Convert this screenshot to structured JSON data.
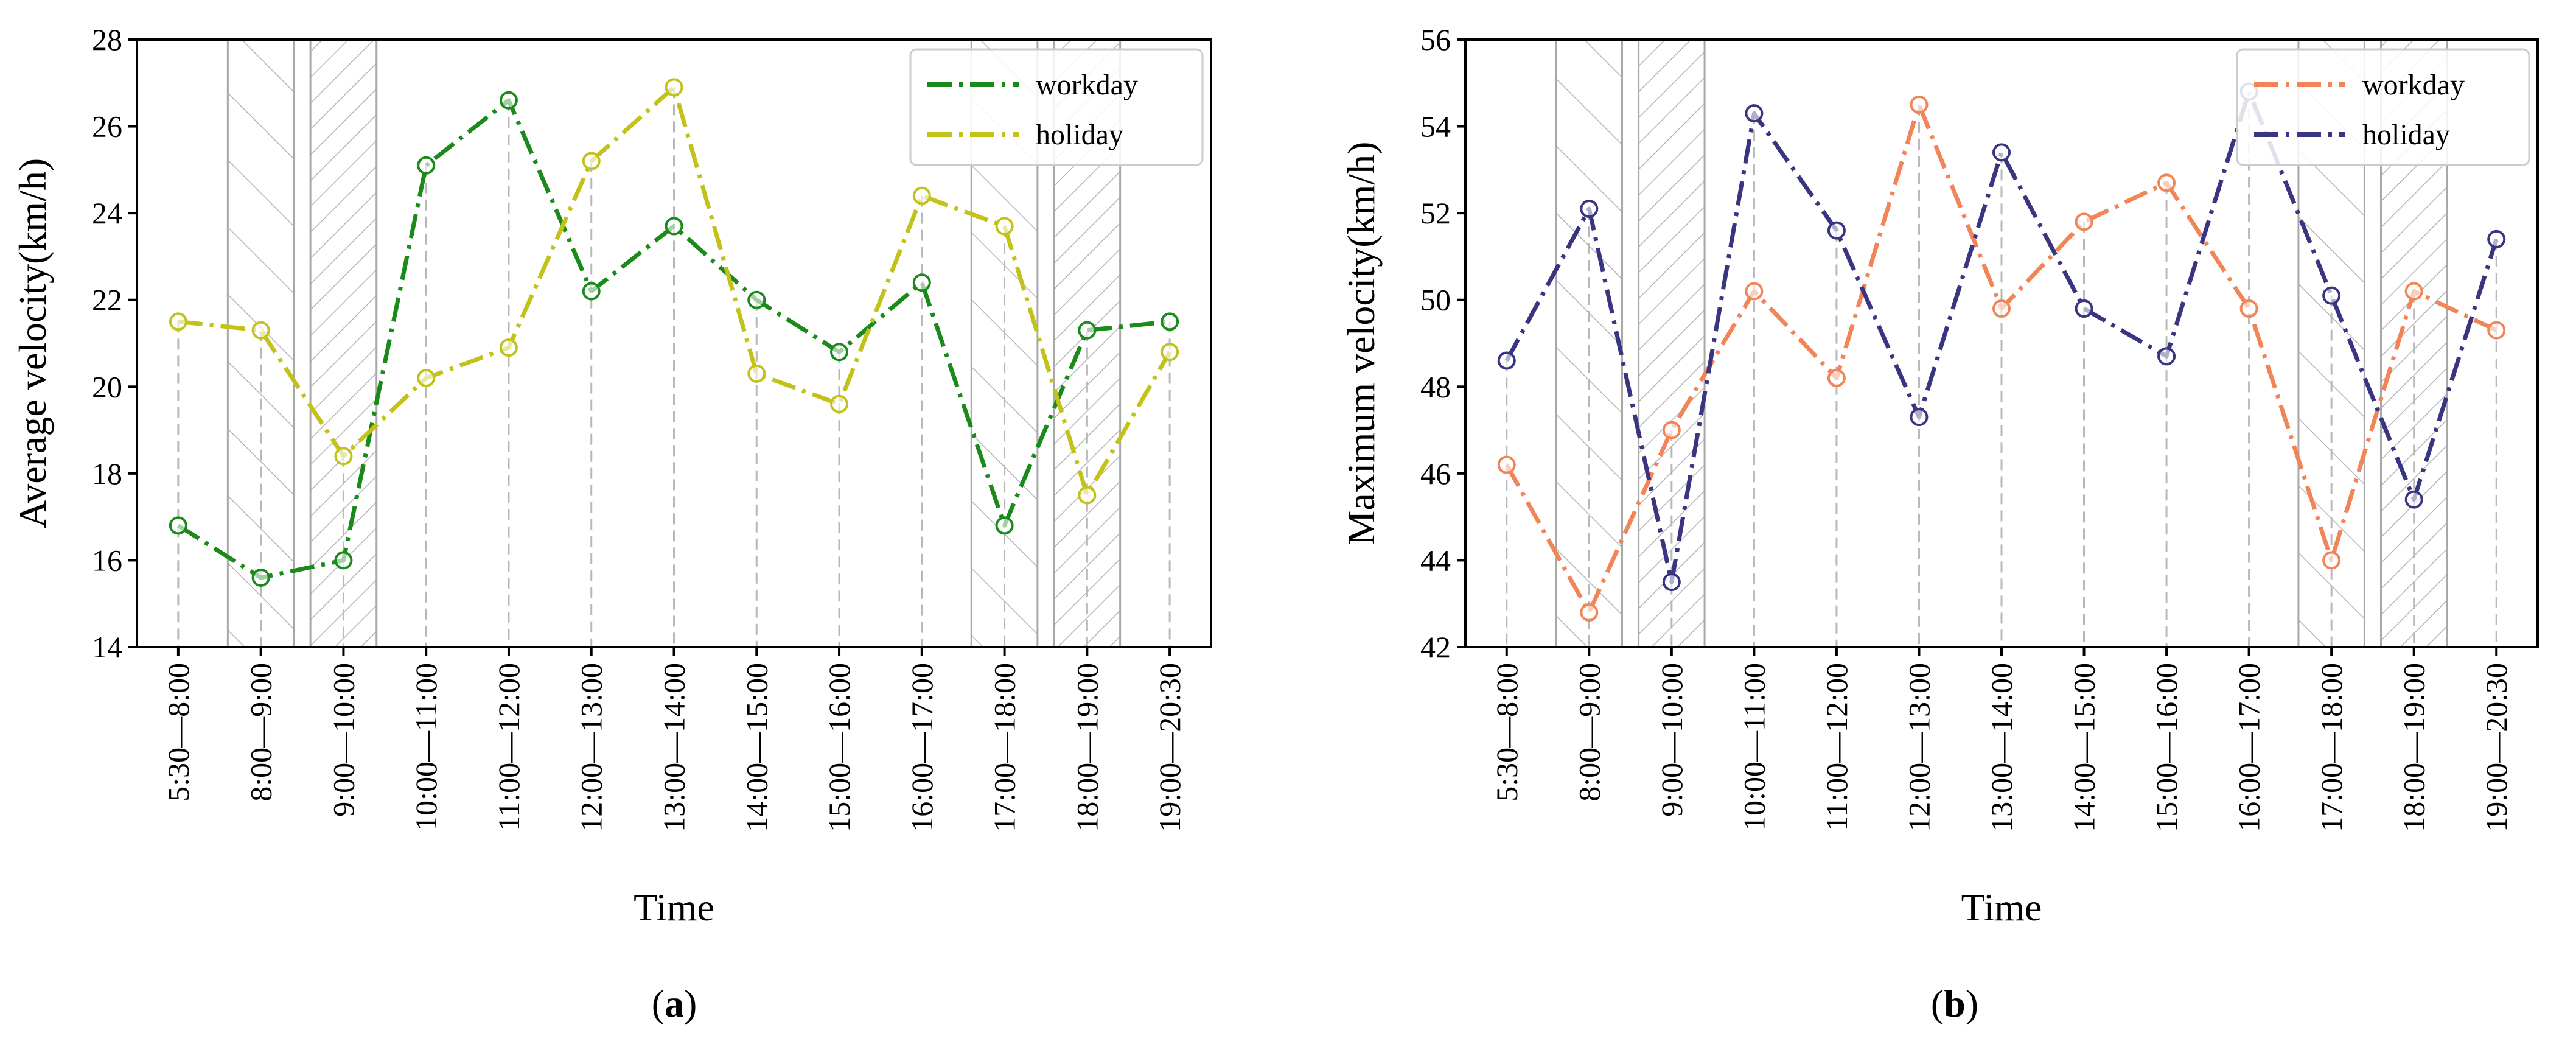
{
  "chart_data": [
    {
      "type": "line",
      "panel_label": "(a)",
      "panel_label_letter": "a",
      "xlabel": "Time",
      "ylabel": "Average velocity(km/h)",
      "ylim": [
        14,
        28
      ],
      "yticks": [
        14,
        16,
        18,
        20,
        22,
        24,
        26,
        28
      ],
      "categories": [
        "5:30—8:00",
        "8:00—9:00",
        "9:00—10:00",
        "10:00—11:00",
        "11:00—12:00",
        "12:00—13:00",
        "13:00—14:00",
        "14:00—15:00",
        "15:00—16:00",
        "16:00—17:00",
        "17:00—18:00",
        "18:00—19:00",
        "19:00—20:30"
      ],
      "peak_bands": [
        {
          "from": 0.6,
          "to": 1.4,
          "hatch": "backslash"
        },
        {
          "from": 1.6,
          "to": 2.4,
          "hatch": "slash"
        },
        {
          "from": 9.6,
          "to": 10.4,
          "hatch": "backslash"
        },
        {
          "from": 10.6,
          "to": 11.4,
          "hatch": "slash"
        }
      ],
      "legend_position": "top-right",
      "series": [
        {
          "name": "workday",
          "color": "#1a8a1a",
          "values": [
            16.8,
            15.6,
            16.0,
            25.1,
            26.6,
            22.2,
            23.7,
            22.0,
            20.8,
            22.4,
            16.8,
            21.3,
            21.5
          ]
        },
        {
          "name": "holiday",
          "color": "#c2c21a",
          "values": [
            21.5,
            21.3,
            18.4,
            20.2,
            20.9,
            25.2,
            26.9,
            20.3,
            19.6,
            24.4,
            23.7,
            17.5,
            20.8
          ]
        }
      ]
    },
    {
      "type": "line",
      "panel_label": "(b)",
      "panel_label_letter": "b",
      "xlabel": "Time",
      "ylabel": "Maximum velocity(km/h)",
      "ylim": [
        42,
        56
      ],
      "yticks": [
        42,
        44,
        46,
        48,
        50,
        52,
        54,
        56
      ],
      "categories": [
        "5:30—8:00",
        "8:00—9:00",
        "9:00—10:00",
        "10:00—11:00",
        "11:00—12:00",
        "12:00—13:00",
        "13:00—14:00",
        "14:00—15:00",
        "15:00—16:00",
        "16:00—17:00",
        "17:00—18:00",
        "18:00—19:00",
        "19:00—20:30"
      ],
      "peak_bands": [
        {
          "from": 0.6,
          "to": 1.4,
          "hatch": "backslash"
        },
        {
          "from": 1.6,
          "to": 2.4,
          "hatch": "slash"
        },
        {
          "from": 9.6,
          "to": 10.4,
          "hatch": "backslash"
        },
        {
          "from": 10.6,
          "to": 11.4,
          "hatch": "slash"
        }
      ],
      "legend_position": "top-right",
      "series": [
        {
          "name": "workday",
          "color": "#f28558",
          "values": [
            46.2,
            42.8,
            47.0,
            50.2,
            48.2,
            54.5,
            49.8,
            51.8,
            52.7,
            49.8,
            44.0,
            50.2,
            49.3
          ]
        },
        {
          "name": "holiday",
          "color": "#3a3580",
          "values": [
            48.6,
            52.1,
            43.5,
            54.3,
            51.6,
            47.3,
            53.4,
            49.8,
            48.7,
            54.8,
            50.1,
            45.4,
            51.4
          ]
        }
      ]
    }
  ]
}
